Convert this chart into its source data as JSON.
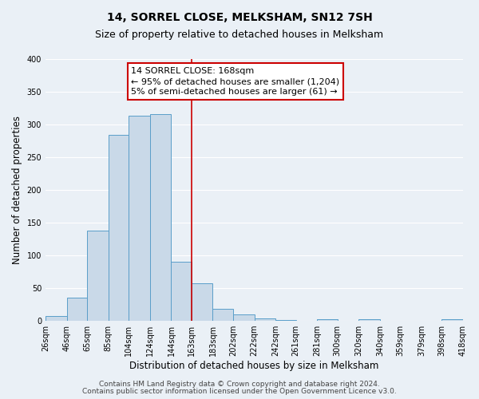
{
  "title": "14, SORREL CLOSE, MELKSHAM, SN12 7SH",
  "subtitle": "Size of property relative to detached houses in Melksham",
  "xlabel": "Distribution of detached houses by size in Melksham",
  "ylabel": "Number of detached properties",
  "bar_edges": [
    26,
    46,
    65,
    85,
    104,
    124,
    144,
    163,
    183,
    202,
    222,
    242,
    261,
    281,
    300,
    320,
    340,
    359,
    379,
    398,
    418
  ],
  "bar_heights": [
    7,
    35,
    138,
    284,
    313,
    316,
    90,
    57,
    18,
    10,
    4,
    1,
    0,
    2,
    0,
    3,
    0,
    0,
    0,
    3
  ],
  "tick_labels": [
    "26sqm",
    "46sqm",
    "65sqm",
    "85sqm",
    "104sqm",
    "124sqm",
    "144sqm",
    "163sqm",
    "183sqm",
    "202sqm",
    "222sqm",
    "242sqm",
    "261sqm",
    "281sqm",
    "300sqm",
    "320sqm",
    "340sqm",
    "359sqm",
    "379sqm",
    "398sqm",
    "418sqm"
  ],
  "bar_color": "#c9d9e8",
  "bar_edge_color": "#5a9ec9",
  "vline_x": 163,
  "vline_color": "#cc0000",
  "annotation_line1": "14 SORREL CLOSE: 168sqm",
  "annotation_line2": "← 95% of detached houses are smaller (1,204)",
  "annotation_line3": "5% of semi-detached houses are larger (61) →",
  "annotation_box_color": "#cc0000",
  "ylim": [
    0,
    400
  ],
  "yticks": [
    0,
    50,
    100,
    150,
    200,
    250,
    300,
    350,
    400
  ],
  "bg_color": "#eaf0f6",
  "footer_line1": "Contains HM Land Registry data © Crown copyright and database right 2024.",
  "footer_line2": "Contains public sector information licensed under the Open Government Licence v3.0.",
  "title_fontsize": 10,
  "subtitle_fontsize": 9,
  "axis_label_fontsize": 8.5,
  "tick_fontsize": 7,
  "annotation_fontsize": 8,
  "footer_fontsize": 6.5
}
